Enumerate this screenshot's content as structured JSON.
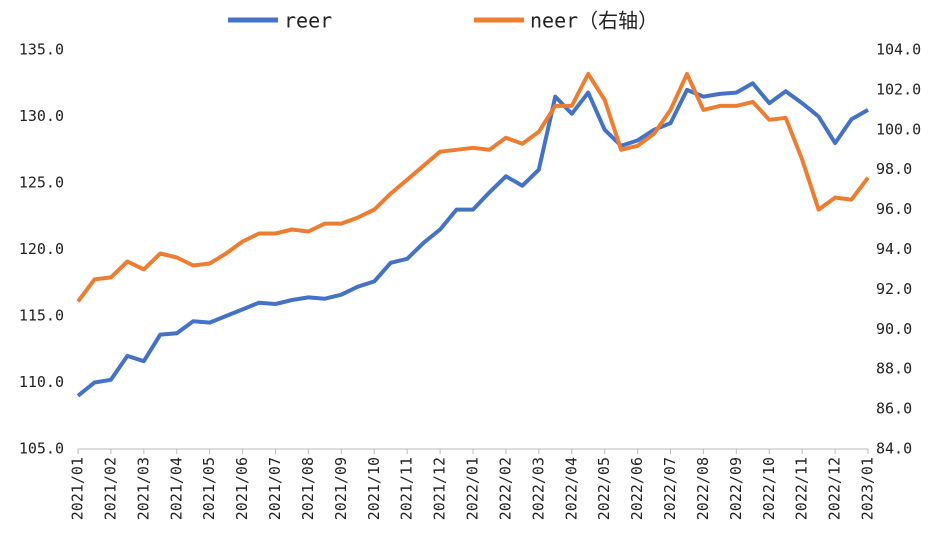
{
  "chart_data": {
    "type": "line",
    "categories": [
      "2021/01",
      null,
      "2021/02",
      null,
      "2021/03",
      null,
      "2021/04",
      null,
      "2021/05",
      null,
      "2021/06",
      null,
      "2021/07",
      null,
      "2021/08",
      null,
      "2021/09",
      null,
      "2021/10",
      null,
      "2021/11",
      null,
      "2021/12",
      null,
      "2022/01",
      null,
      "2022/02",
      null,
      "2022/03",
      null,
      "2022/04",
      null,
      "2022/05",
      null,
      "2022/06",
      null,
      "2022/07",
      null,
      "2022/08",
      null,
      "2022/09",
      null,
      "2022/10",
      null,
      "2022/11",
      null,
      "2022/12",
      null,
      "2023/01"
    ],
    "series": [
      {
        "name": "reer",
        "color": "#4472c4",
        "values": [
          109.0,
          110.0,
          110.2,
          112.0,
          111.6,
          113.6,
          113.7,
          114.6,
          114.5,
          115.0,
          115.5,
          116.0,
          115.9,
          116.2,
          116.4,
          116.3,
          116.6,
          117.2,
          117.6,
          119.0,
          119.3,
          120.5,
          121.5,
          123.0,
          123.0,
          124.3,
          125.5,
          124.8,
          126.0,
          131.5,
          130.2,
          131.8,
          129.0,
          127.8,
          128.2,
          129.0,
          129.5,
          132.0,
          131.5,
          131.7,
          131.8,
          132.5,
          131.0,
          131.9,
          131.0,
          130.0,
          128.0,
          129.8,
          130.5
        ]
      },
      {
        "name": "neer（右轴）",
        "color": "#ed7d31",
        "axis": "y2",
        "values": [
          91.4,
          92.5,
          92.6,
          93.4,
          93.0,
          93.8,
          93.6,
          93.2,
          93.3,
          93.8,
          94.4,
          94.8,
          94.8,
          95.0,
          94.9,
          95.3,
          95.3,
          95.6,
          96.0,
          96.8,
          97.5,
          98.2,
          98.9,
          99.0,
          99.1,
          99.0,
          99.6,
          99.3,
          99.9,
          101.2,
          101.2,
          102.8,
          101.5,
          99.0,
          99.2,
          99.8,
          101.0,
          102.8,
          101.0,
          101.2,
          101.2,
          101.4,
          100.5,
          100.6,
          98.5,
          96.0,
          96.6,
          96.5,
          97.6
        ]
      }
    ],
    "ylim": [
      105,
      135
    ],
    "yticks": [
      {
        "value": 105,
        "label": "105.0"
      },
      {
        "value": 110,
        "label": "110.0"
      },
      {
        "value": 115,
        "label": "115.0"
      },
      {
        "value": 120,
        "label": "120.0"
      },
      {
        "value": 125,
        "label": "125.0"
      },
      {
        "value": 130,
        "label": "130.0"
      },
      {
        "value": 135,
        "label": "135.0"
      }
    ],
    "y2lim": [
      84,
      104
    ],
    "y2ticks": [
      {
        "value": 84,
        "label": "84.0"
      },
      {
        "value": 86,
        "label": "86.0"
      },
      {
        "value": 88,
        "label": "88.0"
      },
      {
        "value": 90,
        "label": "90.0"
      },
      {
        "value": 92,
        "label": "92.0"
      },
      {
        "value": 94,
        "label": "94.0"
      },
      {
        "value": 96,
        "label": "96.0"
      },
      {
        "value": 98,
        "label": "98.0"
      },
      {
        "value": 100,
        "label": "100.0"
      },
      {
        "value": 102,
        "label": "102.0"
      },
      {
        "value": 104,
        "label": "104.0"
      }
    ],
    "legend": "top"
  }
}
